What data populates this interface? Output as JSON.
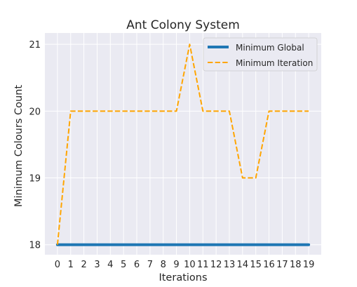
{
  "chart_data": {
    "type": "line",
    "title": "Ant Colony System",
    "xlabel": "Iterations",
    "ylabel": "Minimum Colours Count",
    "x": [
      0,
      1,
      2,
      3,
      4,
      5,
      6,
      7,
      8,
      9,
      10,
      11,
      12,
      13,
      14,
      15,
      16,
      17,
      18,
      19
    ],
    "x_ticks": [
      "0",
      "1",
      "2",
      "3",
      "4",
      "5",
      "6",
      "7",
      "8",
      "9",
      "10",
      "11",
      "12",
      "13",
      "14",
      "15",
      "16",
      "17",
      "18",
      "19"
    ],
    "y_ticks": [
      "18",
      "19",
      "20",
      "21"
    ],
    "xlim": [
      -0.95,
      19.95
    ],
    "ylim": [
      17.85,
      21.17
    ],
    "grid": true,
    "legend_position": "top-right",
    "series": [
      {
        "name": "Minimum Global",
        "color": "#1f77b4",
        "style": "solid",
        "values": [
          18,
          18,
          18,
          18,
          18,
          18,
          18,
          18,
          18,
          18,
          18,
          18,
          18,
          18,
          18,
          18,
          18,
          18,
          18,
          18
        ]
      },
      {
        "name": "Minimum Iteration",
        "color": "#ffa500",
        "style": "dashed",
        "values": [
          18,
          20,
          20,
          20,
          20,
          20,
          20,
          20,
          20,
          20,
          21,
          20,
          20,
          20,
          19,
          19,
          20,
          20,
          20,
          20
        ]
      }
    ]
  }
}
